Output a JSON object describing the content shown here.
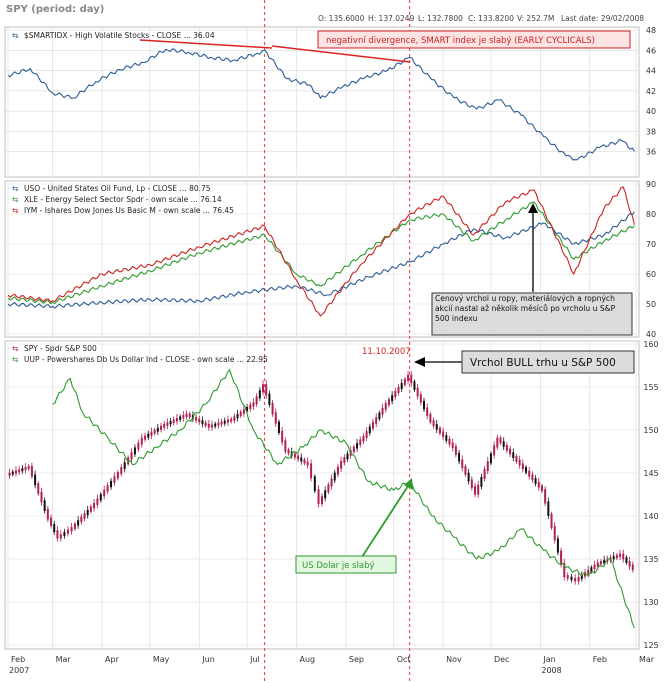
{
  "header": {
    "symbol_label": "SPY (period: day)",
    "ohlc": {
      "o": "O: 135.6000",
      "h": "H: 137.0249",
      "l": "L: 132.7800",
      "c": "C: 133.8200",
      "v": "V: 252.7M",
      "last_date": "Last date: 29/02/2008"
    }
  },
  "colors": {
    "smart": "#2e5c94",
    "uso": "#2e5c94",
    "xle": "#2f9a2f",
    "iym": "#cc2222",
    "uup": "#2f9a2f",
    "candle_up": "#b02050",
    "candle_down": "#111111",
    "marker": "#ee3333",
    "grid": "#d9d9d9"
  },
  "markers": [
    "Jul 12 2007",
    "Oct 11 2007"
  ],
  "annotations": {
    "divergence": "negativní divergence, SMART index je slabý  (EARLY CYCLICALS)",
    "commodities": "Cenový vrchol u ropy, materiálových a ropných akcií nastal až několik měsíců po vrcholu u S&P 500 indexu",
    "usd": "US Dolar je slabý",
    "top": "Vrchol BULL trhu u S&P 500",
    "date": "11.10.2007"
  },
  "chart_data": [
    {
      "type": "line",
      "title": "",
      "series": [
        {
          "name": "$SMARTIDX - High Volatile Stocks - CLOSE ... 36.04",
          "points": [
            [
              "Feb 1 2007",
              43.5
            ],
            [
              "Feb 15 2007",
              44.2
            ],
            [
              "Mar 1 2007",
              41.8
            ],
            [
              "Mar 14 2007",
              41.3
            ],
            [
              "Mar 28 2007",
              42.9
            ],
            [
              "Apr 12 2007",
              44.1
            ],
            [
              "Apr 27 2007",
              44.8
            ],
            [
              "May 11 2007",
              46.1
            ],
            [
              "May 25 2007",
              45.8
            ],
            [
              "Jun 8 2007",
              45.3
            ],
            [
              "Jun 22 2007",
              45.0
            ],
            [
              "Jul 6 2007",
              45.6
            ],
            [
              "Jul 12 2007",
              46.0
            ],
            [
              "Jul 26 2007",
              43.2
            ],
            [
              "Aug 9 2007",
              42.6
            ],
            [
              "Aug 16 2007",
              41.3
            ],
            [
              "Aug 30 2007",
              42.4
            ],
            [
              "Sep 13 2007",
              43.3
            ],
            [
              "Sep 27 2007",
              44.0
            ],
            [
              "Oct 11 2007",
              45.3
            ],
            [
              "Oct 25 2007",
              43.1
            ],
            [
              "Nov 8 2007",
              41.3
            ],
            [
              "Nov 22 2007",
              40.2
            ],
            [
              "Dec 6 2007",
              41.1
            ],
            [
              "Dec 20 2007",
              39.6
            ],
            [
              "Jan 3 2008",
              37.5
            ],
            [
              "Jan 17 2008",
              35.6
            ],
            [
              "Jan 24 2008",
              35.2
            ],
            [
              "Feb 7 2008",
              36.4
            ],
            [
              "Feb 21 2008",
              37.1
            ],
            [
              "Feb 29 2008",
              36.04
            ]
          ]
        }
      ],
      "ylim": [
        34,
        48
      ],
      "yticks": [
        36,
        38,
        40,
        42,
        44,
        46,
        48
      ],
      "grid": true
    },
    {
      "type": "line",
      "title": "",
      "series": [
        {
          "name": "USO - United States Oil Fund, Lp - CLOSE ... 80.75",
          "points": [
            [
              "Feb 1 2007",
              50.0
            ],
            [
              "Mar 1 2007",
              49.2
            ],
            [
              "Apr 1 2007",
              50.5
            ],
            [
              "May 1 2007",
              51.5
            ],
            [
              "Jun 1 2007",
              51.0
            ],
            [
              "Jul 1 2007",
              54.0
            ],
            [
              "Aug 1 2007",
              56.0
            ],
            [
              "Aug 20 2007",
              53.0
            ],
            [
              "Sep 15 2007",
              59.0
            ],
            [
              "Oct 11 2007",
              64.0
            ],
            [
              "Nov 1 2007",
              70.0
            ],
            [
              "Nov 20 2007",
              75.0
            ],
            [
              "Dec 10 2007",
              72.0
            ],
            [
              "Jan 3 2008",
              77.0
            ],
            [
              "Jan 22 2008",
              70.0
            ],
            [
              "Feb 10 2008",
              73.0
            ],
            [
              "Feb 29 2008",
              80.75
            ]
          ]
        },
        {
          "name": "XLE - Energy Select Sector Spdr - own scale ... 76.14",
          "points": [
            [
              "Feb 1 2007",
              52.0
            ],
            [
              "Mar 1 2007",
              50.5
            ],
            [
              "Apr 1 2007",
              56.0
            ],
            [
              "May 1 2007",
              61.0
            ],
            [
              "Jun 1 2007",
              67.0
            ],
            [
              "Jul 12 2007",
              73.0
            ],
            [
              "Aug 1 2007",
              60.0
            ],
            [
              "Aug 16 2007",
              56.0
            ],
            [
              "Sep 10 2007",
              66.0
            ],
            [
              "Oct 11 2007",
              78.0
            ],
            [
              "Nov 1 2007",
              80.0
            ],
            [
              "Nov 20 2007",
              71.0
            ],
            [
              "Dec 10 2007",
              78.0
            ],
            [
              "Dec 28 2007",
              84.0
            ],
            [
              "Jan 22 2008",
              65.0
            ],
            [
              "Feb 10 2008",
              71.0
            ],
            [
              "Feb 29 2008",
              76.14
            ]
          ]
        },
        {
          "name": "IYM - Ishares Dow Jones Us Basic M - own scale ... 76.45",
          "points": [
            [
              "Feb 1 2007",
              53.0
            ],
            [
              "Mar 1 2007",
              51.0
            ],
            [
              "Apr 1 2007",
              60.0
            ],
            [
              "May 1 2007",
              63.0
            ],
            [
              "Jun 1 2007",
              69.0
            ],
            [
              "Jul 12 2007",
              76.0
            ],
            [
              "Aug 1 2007",
              58.0
            ],
            [
              "Aug 16 2007",
              46.0
            ],
            [
              "Sep 10 2007",
              63.0
            ],
            [
              "Oct 11 2007",
              80.0
            ],
            [
              "Nov 1 2007",
              86.0
            ],
            [
              "Nov 20 2007",
              73.0
            ],
            [
              "Dec 10 2007",
              84.0
            ],
            [
              "Dec 28 2007",
              88.0
            ],
            [
              "Jan 22 2008",
              60.0
            ],
            [
              "Feb 10 2008",
              82.0
            ],
            [
              "Feb 22 2008",
              89.0
            ],
            [
              "Feb 29 2008",
              76.45
            ]
          ]
        }
      ],
      "ylim": [
        40,
        90
      ],
      "yticks": [
        40,
        50,
        60,
        70,
        80,
        90
      ],
      "grid": true
    },
    {
      "type": "candlestick",
      "title": "",
      "ohlc_series": {
        "name": "SPY - Spdr S&P 500",
        "points": [
          [
            "Feb 1 2007",
            144.8
          ],
          [
            "Feb 15 2007",
            145.7
          ],
          [
            "Feb 27 2007",
            139.7
          ],
          [
            "Mar 5 2007",
            137.5
          ],
          [
            "Mar 14 2007",
            138.6
          ],
          [
            "Mar 28 2007",
            141.4
          ],
          [
            "Apr 12 2007",
            145.0
          ],
          [
            "Apr 27 2007",
            149.0
          ],
          [
            "May 11 2007",
            150.6
          ],
          [
            "May 25 2007",
            151.8
          ],
          [
            "Jun 8 2007",
            150.4
          ],
          [
            "Jun 22 2007",
            151.2
          ],
          [
            "Jul 6 2007",
            153.1
          ],
          [
            "Jul 12 2007",
            155.2
          ],
          [
            "Jul 26 2007",
            147.6
          ],
          [
            "Aug 9 2007",
            146.0
          ],
          [
            "Aug 16 2007",
            141.5
          ],
          [
            "Aug 30 2007",
            146.3
          ],
          [
            "Sep 13 2007",
            149.2
          ],
          [
            "Sep 27 2007",
            153.0
          ],
          [
            "Oct 11 2007",
            156.3
          ],
          [
            "Oct 25 2007",
            151.0
          ],
          [
            "Nov 8 2007",
            148.0
          ],
          [
            "Nov 22 2007",
            142.6
          ],
          [
            "Dec 6 2007",
            149.0
          ],
          [
            "Dec 20 2007",
            146.0
          ],
          [
            "Jan 3 2008",
            143.0
          ],
          [
            "Jan 17 2008",
            133.0
          ],
          [
            "Jan 24 2008",
            132.5
          ],
          [
            "Feb 7 2008",
            134.5
          ],
          [
            "Feb 21 2008",
            135.5
          ],
          [
            "Feb 29 2008",
            133.82
          ]
        ]
      },
      "series": [
        {
          "name": "UUP - Powershares Db Us Dollar Ind - CLOSE - own scale ... 22.95",
          "points": [
            [
              "Mar 1 2007",
              153.0
            ],
            [
              "Mar 12 2007",
              156.0
            ],
            [
              "Mar 20 2007",
              152.0
            ],
            [
              "Apr 5 2007",
              149.0
            ],
            [
              "Apr 20 2007",
              146.0
            ],
            [
              "May 5 2007",
              148.0
            ],
            [
              "May 20 2007",
              150.0
            ],
            [
              "Jun 5 2007",
              153.0
            ],
            [
              "Jun 20 2007",
              157.0
            ],
            [
              "Jul 5 2007",
              150.0
            ],
            [
              "Jul 20 2007",
              146.0
            ],
            [
              "Aug 5 2007",
              148.0
            ],
            [
              "Aug 16 2007",
              150.0
            ],
            [
              "Sep 1 2007",
              148.5
            ],
            [
              "Sep 15 2007",
              144.0
            ],
            [
              "Oct 1 2007",
              143.0
            ],
            [
              "Oct 11 2007",
              144.0
            ],
            [
              "Oct 25 2007",
              140.0
            ],
            [
              "Nov 8 2007",
              137.5
            ],
            [
              "Nov 22 2007",
              135.0
            ],
            [
              "Dec 6 2007",
              136.0
            ],
            [
              "Dec 20 2007",
              138.5
            ],
            [
              "Jan 3 2008",
              136.0
            ],
            [
              "Jan 17 2008",
              134.0
            ],
            [
              "Jan 31 2008",
              133.0
            ],
            [
              "Feb 14 2008",
              135.0
            ],
            [
              "Feb 29 2008",
              127.0
            ]
          ]
        }
      ],
      "ylim": [
        125,
        160
      ],
      "yticks": [
        125,
        130,
        135,
        140,
        145,
        150,
        155,
        160
      ],
      "grid": true
    }
  ],
  "x_axis": {
    "range": [
      "Feb 1 2007",
      "Mar 1 2008"
    ],
    "ticks": [
      {
        "label": "Feb",
        "sub": "2007",
        "date": "Feb 1 2007"
      },
      {
        "label": "Mar",
        "sub": "",
        "date": "Mar 1 2007"
      },
      {
        "label": "Apr",
        "sub": "",
        "date": "Apr 1 2007"
      },
      {
        "label": "May",
        "sub": "",
        "date": "May 1 2007"
      },
      {
        "label": "Jun",
        "sub": "",
        "date": "Jun 1 2007"
      },
      {
        "label": "Jul",
        "sub": "",
        "date": "Jul 1 2007"
      },
      {
        "label": "Aug",
        "sub": "",
        "date": "Aug 1 2007"
      },
      {
        "label": "Sep",
        "sub": "",
        "date": "Sep 1 2007"
      },
      {
        "label": "Oct",
        "sub": "",
        "date": "Oct 1 2007"
      },
      {
        "label": "Nov",
        "sub": "",
        "date": "Nov 1 2007"
      },
      {
        "label": "Dec",
        "sub": "",
        "date": "Dec 1 2007"
      },
      {
        "label": "Jan",
        "sub": "2008",
        "date": "Jan 1 2008"
      },
      {
        "label": "Feb",
        "sub": "",
        "date": "Feb 1 2008"
      },
      {
        "label": "Mar",
        "sub": "",
        "date": "Mar 1 2008"
      }
    ]
  }
}
